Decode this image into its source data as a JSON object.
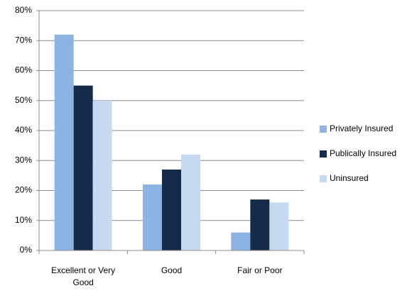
{
  "chart_data": {
    "type": "bar",
    "categories": [
      "Excellent or Very Good",
      "Good",
      "Fair or Poor"
    ],
    "series": [
      {
        "name": "Privately Insured",
        "color": "#8db3e2",
        "values": [
          72,
          22,
          6
        ]
      },
      {
        "name": "Publically Insured",
        "color": "#142b4a",
        "values": [
          55,
          27,
          17
        ]
      },
      {
        "name": "Uninsured",
        "color": "#c6d9f1",
        "values": [
          50,
          32,
          16
        ]
      }
    ],
    "ylim": [
      0,
      80
    ],
    "yticks": [
      {
        "value": 0,
        "label": "0%"
      },
      {
        "value": 10,
        "label": "10%"
      },
      {
        "value": 20,
        "label": "20%"
      },
      {
        "value": 30,
        "label": "30%"
      },
      {
        "value": 40,
        "label": "40%"
      },
      {
        "value": 50,
        "label": "50%"
      },
      {
        "value": 60,
        "label": "60%"
      },
      {
        "value": 70,
        "label": "70%"
      },
      {
        "value": 80,
        "label": "80%"
      }
    ],
    "grid": true,
    "legend": "right"
  }
}
